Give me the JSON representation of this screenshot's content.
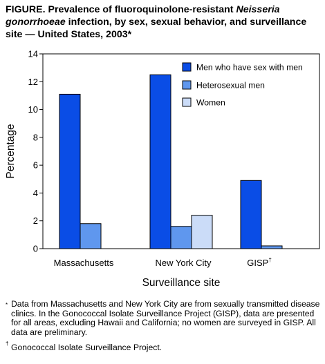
{
  "figure": {
    "title_prefix": "FIGURE. Prevalence of fluoroquinolone-resistant ",
    "title_italic": "Neisseria gonorrhoeae",
    "title_suffix": " infection, by sex, sexual behavior, and surveillance site — United States, 2003*"
  },
  "chart_data": {
    "type": "bar",
    "title": "",
    "xlabel": "Surveillance site",
    "ylabel": "Percentage",
    "ylim": [
      0,
      14
    ],
    "yticks": [
      0,
      2,
      4,
      6,
      8,
      10,
      12,
      14
    ],
    "categories": [
      "Massachusetts",
      "New York City",
      "GISP"
    ],
    "category_marks": [
      "",
      "",
      "†"
    ],
    "grid": false,
    "legend_position": "top-right",
    "series": [
      {
        "name": "Men who have sex with men",
        "color": "#0a4de6",
        "values": [
          11.1,
          12.5,
          4.9
        ]
      },
      {
        "name": "Heterosexual men",
        "color": "#5f97ee",
        "values": [
          1.8,
          1.6,
          0.2
        ]
      },
      {
        "name": "Women",
        "color": "#cbdcf8",
        "values": [
          null,
          2.4,
          null
        ]
      }
    ]
  },
  "footnotes": {
    "star_mark": "*",
    "star_text": "Data from Massachusetts and New York City are from sexually transmitted disease clinics. In the Gonococcal Isolate Surveillance Project (GISP), data are presented for all areas, excluding Hawaii and California; no women are surveyed in GISP. All data are preliminary.",
    "dagger_mark": "†",
    "dagger_text": "Gonococcal Isolate Surveillance Project."
  }
}
